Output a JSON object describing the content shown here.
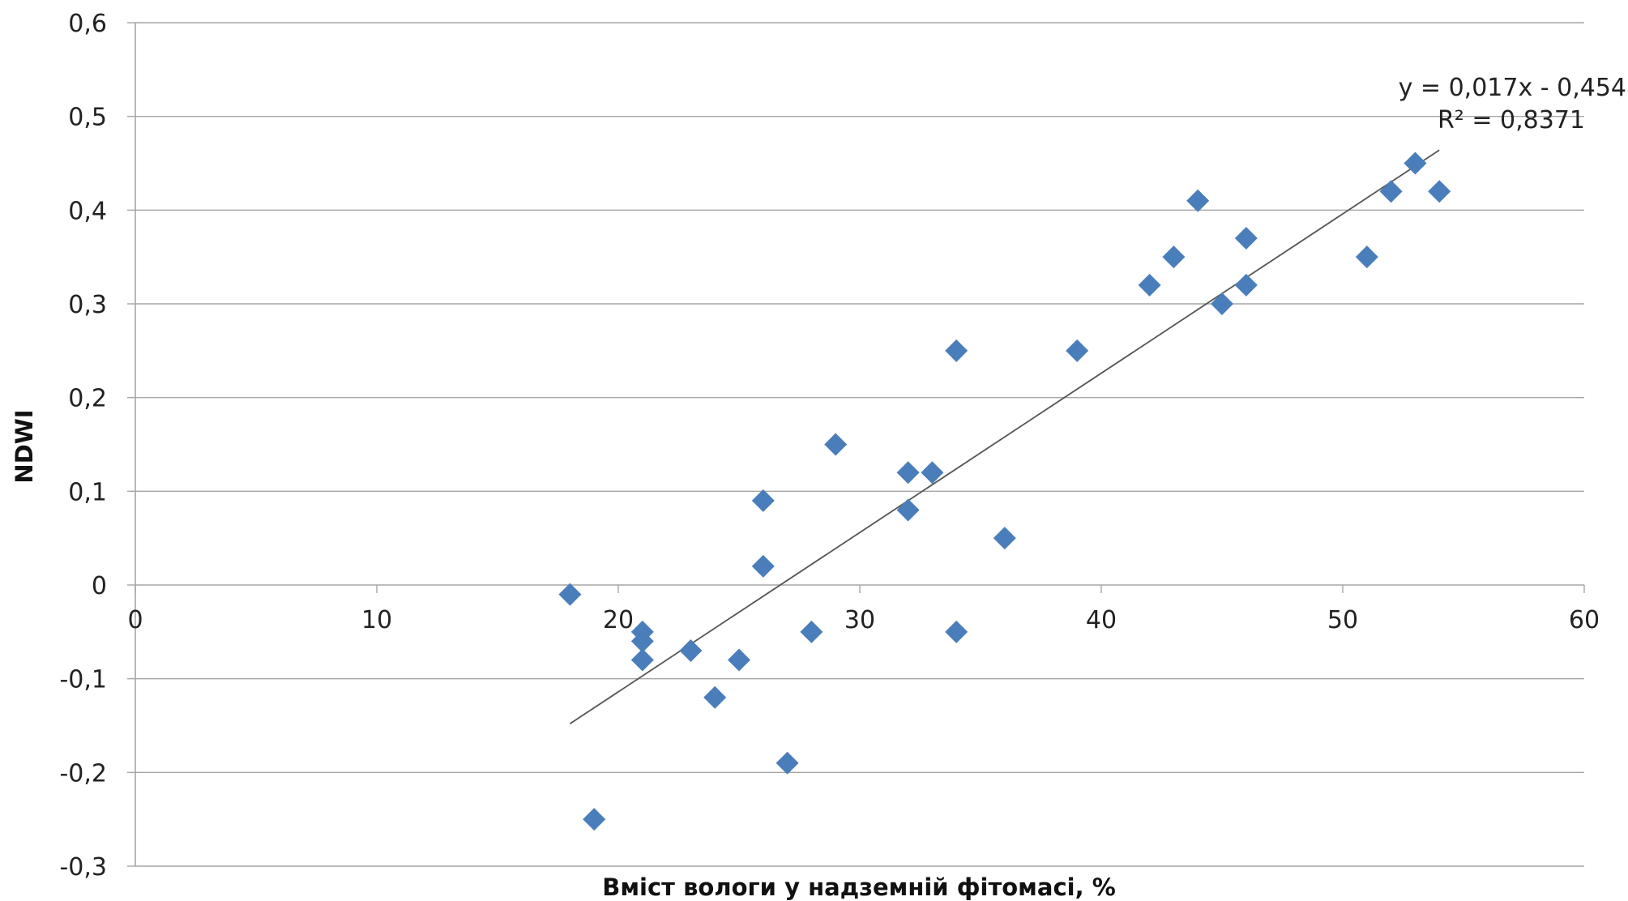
{
  "chart_data": {
    "type": "scatter",
    "title": "",
    "xlabel": "Вміст вологи у надземній фітомасі, %",
    "ylabel": "NDWI",
    "xlim": [
      0,
      60
    ],
    "ylim": [
      -0.3,
      0.6
    ],
    "x_ticks": [
      0,
      10,
      20,
      30,
      40,
      50,
      60
    ],
    "y_ticks": [
      -0.3,
      -0.2,
      -0.1,
      0,
      0.1,
      0.2,
      0.3,
      0.4,
      0.5,
      0.6
    ],
    "x_tick_labels": [
      "0",
      "10",
      "20",
      "30",
      "40",
      "50",
      "60"
    ],
    "y_tick_labels": [
      "-0,3",
      "-0,2",
      "-0,1",
      "0",
      "0,1",
      "0,2",
      "0,3",
      "0,4",
      "0,5",
      "0,6"
    ],
    "grid": true,
    "legend": "none",
    "series": [
      {
        "marker": "diamond",
        "color": "#4a7ebb",
        "points": [
          [
            18,
            -0.01
          ],
          [
            19,
            -0.25
          ],
          [
            21,
            -0.05
          ],
          [
            21,
            -0.06
          ],
          [
            21,
            -0.08
          ],
          [
            23,
            -0.07
          ],
          [
            24,
            -0.12
          ],
          [
            25,
            -0.08
          ],
          [
            26,
            0.09
          ],
          [
            26,
            0.02
          ],
          [
            27,
            -0.19
          ],
          [
            28,
            -0.05
          ],
          [
            29,
            0.15
          ],
          [
            32,
            0.12
          ],
          [
            32,
            0.08
          ],
          [
            33,
            0.12
          ],
          [
            34,
            0.25
          ],
          [
            34,
            -0.05
          ],
          [
            36,
            0.05
          ],
          [
            39,
            0.25
          ],
          [
            42,
            0.32
          ],
          [
            43,
            0.35
          ],
          [
            44,
            0.41
          ],
          [
            45,
            0.3
          ],
          [
            46,
            0.37
          ],
          [
            46,
            0.32
          ],
          [
            51,
            0.35
          ],
          [
            52,
            0.42
          ],
          [
            53,
            0.45
          ],
          [
            54,
            0.42
          ]
        ]
      }
    ],
    "trendline": {
      "type": "linear",
      "slope": 0.017,
      "intercept": -0.454,
      "x_range": [
        18,
        54
      ],
      "color": "#555555",
      "equation_label": "y = 0,017x - 0,454",
      "r2_label": "R² = 0,8371"
    }
  }
}
